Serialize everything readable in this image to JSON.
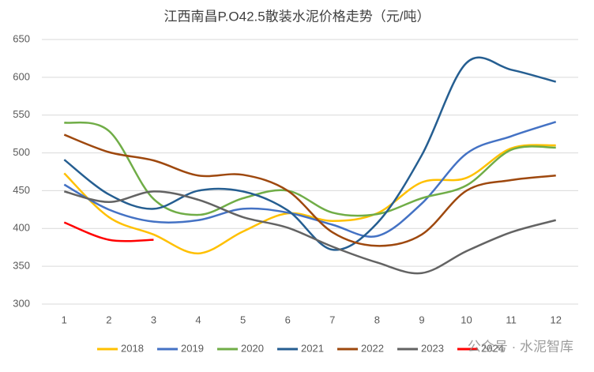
{
  "chart_data": {
    "type": "line",
    "title": "江西南昌P.O42.5散装水泥价格走势（元/吨）",
    "categories": [
      "1",
      "2",
      "3",
      "4",
      "5",
      "6",
      "7",
      "8",
      "9",
      "10",
      "11",
      "12"
    ],
    "series": [
      {
        "name": "2018",
        "color": "#ffc000",
        "values": [
          473,
          415,
          392,
          367,
          396,
          420,
          410,
          420,
          461,
          467,
          506,
          510
        ]
      },
      {
        "name": "2019",
        "color": "#4472c4",
        "values": [
          458,
          425,
          409,
          411,
          426,
          421,
          405,
          390,
          433,
          499,
          522,
          541
        ]
      },
      {
        "name": "2020",
        "color": "#70ad47",
        "values": [
          540,
          529,
          439,
          418,
          440,
          450,
          421,
          419,
          440,
          457,
          504,
          507
        ]
      },
      {
        "name": "2021",
        "color": "#255e91",
        "values": [
          491,
          445,
          426,
          450,
          449,
          424,
          372,
          407,
          497,
          619,
          610,
          594
        ]
      },
      {
        "name": "2022",
        "color": "#9e480e",
        "values": [
          524,
          501,
          490,
          470,
          471,
          450,
          395,
          377,
          392,
          450,
          464,
          470
        ]
      },
      {
        "name": "2023",
        "color": "#636363",
        "values": [
          449,
          435,
          449,
          438,
          415,
          401,
          376,
          355,
          341,
          370,
          395,
          411
        ]
      },
      {
        "name": "2024",
        "color": "#ff0000",
        "values": [
          408,
          385,
          385,
          null,
          null,
          null,
          null,
          null,
          null,
          null,
          null,
          null
        ]
      }
    ],
    "ylim": [
      300,
      650
    ],
    "yticks": [
      300,
      350,
      400,
      450,
      500,
      550,
      600,
      650
    ],
    "grid": true,
    "legend": "bottom",
    "watermark": "公众号 · 水泥智库"
  }
}
